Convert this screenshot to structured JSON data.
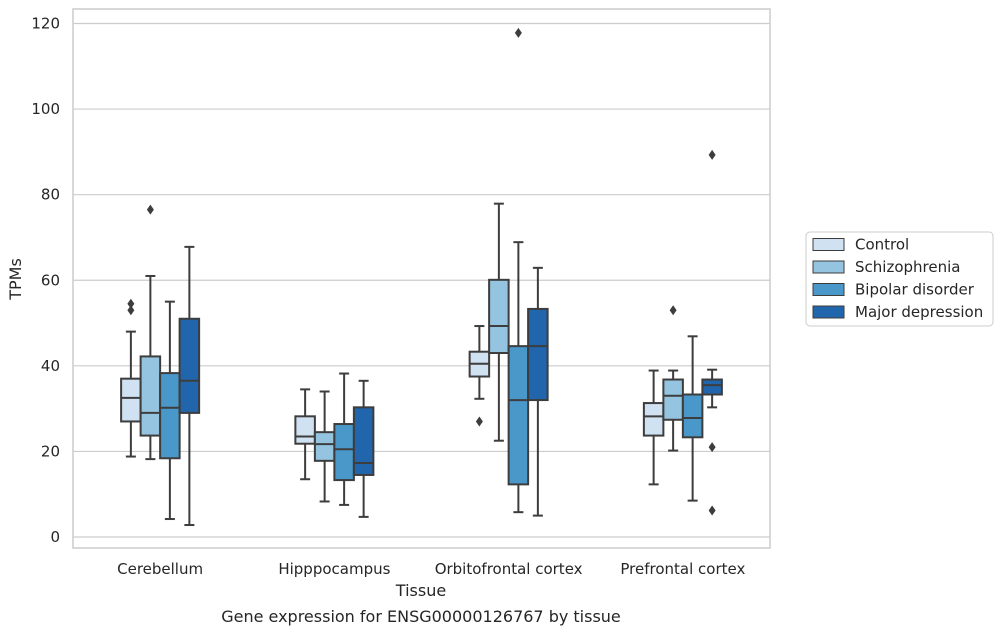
{
  "chart_data": {
    "type": "box",
    "xlabel": "Tissue",
    "ylabel": "TPMs",
    "caption": "Gene expression for ENSG00000126767 by tissue",
    "categories": [
      "Cerebellum",
      "Hipppocampus",
      "Orbitofrontal cortex",
      "Prefrontal cortex"
    ],
    "yticks": [
      0,
      20,
      40,
      60,
      80,
      100,
      120
    ],
    "ylim": [
      -3,
      124
    ],
    "grid": true,
    "legend_position": "right",
    "series": [
      {
        "name": "Control",
        "color": "#d0e1f2",
        "boxes": [
          {
            "whislo": 18.8,
            "q1": 27,
            "med": 32.5,
            "q3": 37,
            "whishi": 48,
            "fliers": [
              53,
              54.5
            ]
          },
          {
            "whislo": 13.5,
            "q1": 21.8,
            "med": 23.5,
            "q3": 28.2,
            "whishi": 34.5,
            "fliers": []
          },
          {
            "whislo": 32.3,
            "q1": 37.5,
            "med": 40.5,
            "q3": 43.3,
            "whishi": 49.3,
            "fliers": [
              27
            ]
          },
          {
            "whislo": 12.3,
            "q1": 23.7,
            "med": 28.2,
            "q3": 31.3,
            "whishi": 38.9,
            "fliers": []
          }
        ]
      },
      {
        "name": "Schizophrenia",
        "color": "#94c4df",
        "boxes": [
          {
            "whislo": 18.2,
            "q1": 23.7,
            "med": 29,
            "q3": 42.2,
            "whishi": 61,
            "fliers": [
              76.5
            ]
          },
          {
            "whislo": 8.3,
            "q1": 17.8,
            "med": 21.7,
            "q3": 24.5,
            "whishi": 34,
            "fliers": []
          },
          {
            "whislo": 22.5,
            "q1": 43,
            "med": 49.3,
            "q3": 60.1,
            "whishi": 77.9,
            "fliers": []
          },
          {
            "whislo": 20.2,
            "q1": 27.4,
            "med": 33,
            "q3": 36.8,
            "whishi": 38.9,
            "fliers": [
              53
            ]
          }
        ]
      },
      {
        "name": "Bipolar disorder",
        "color": "#4a98c9",
        "boxes": [
          {
            "whislo": 4.2,
            "q1": 18.4,
            "med": 30.2,
            "q3": 38.3,
            "whishi": 55,
            "fliers": []
          },
          {
            "whislo": 7.5,
            "q1": 13.3,
            "med": 20.5,
            "q3": 26.4,
            "whishi": 38.2,
            "fliers": []
          },
          {
            "whislo": 5.8,
            "q1": 12.3,
            "med": 32,
            "q3": 44.6,
            "whishi": 68.9,
            "fliers": [
              117.8
            ]
          },
          {
            "whislo": 8.5,
            "q1": 23.3,
            "med": 27.8,
            "q3": 33.3,
            "whishi": 46.9,
            "fliers": []
          }
        ]
      },
      {
        "name": "Major depression",
        "color": "#2166ac",
        "boxes": [
          {
            "whislo": 2.8,
            "q1": 29,
            "med": 36.5,
            "q3": 51,
            "whishi": 67.8,
            "fliers": []
          },
          {
            "whislo": 4.7,
            "q1": 14.5,
            "med": 17.3,
            "q3": 30.3,
            "whishi": 36.5,
            "fliers": []
          },
          {
            "whislo": 5,
            "q1": 32,
            "med": 44.6,
            "q3": 53.3,
            "whishi": 62.9,
            "fliers": []
          },
          {
            "whislo": 30.3,
            "q1": 33.3,
            "med": 35.5,
            "q3": 36.8,
            "whishi": 39.1,
            "fliers": [
              21,
              6.2,
              89.3
            ]
          }
        ]
      }
    ]
  }
}
